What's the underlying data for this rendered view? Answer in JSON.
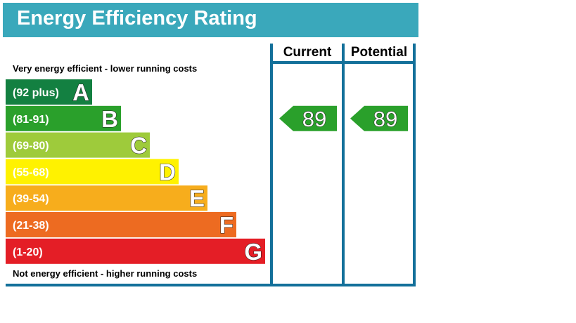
{
  "chart_data": {
    "type": "bar",
    "title": "Energy Efficiency Rating",
    "top_note": "Very energy efficient - lower running costs",
    "bottom_note": "Not energy efficient - higher running costs",
    "columns": [
      "Current",
      "Potential"
    ],
    "bands": [
      {
        "range": "(92 plus)",
        "letter": "A",
        "color": "#138041"
      },
      {
        "range": "(81-91)",
        "letter": "B",
        "color": "#2aa02b"
      },
      {
        "range": "(69-80)",
        "letter": "C",
        "color": "#9ecb3b"
      },
      {
        "range": "(55-68)",
        "letter": "D",
        "color": "#fff200"
      },
      {
        "range": "(39-54)",
        "letter": "E",
        "color": "#f7ad1c"
      },
      {
        "range": "(21-38)",
        "letter": "F",
        "color": "#ed6b21"
      },
      {
        "range": "(1-20)",
        "letter": "G",
        "color": "#e41e26"
      }
    ],
    "ratings": {
      "current": {
        "value": 89,
        "band": "B",
        "color": "#2aa02b"
      },
      "potential": {
        "value": 89,
        "band": "B",
        "color": "#2aa02b"
      }
    },
    "frame_color": "#13709a"
  }
}
